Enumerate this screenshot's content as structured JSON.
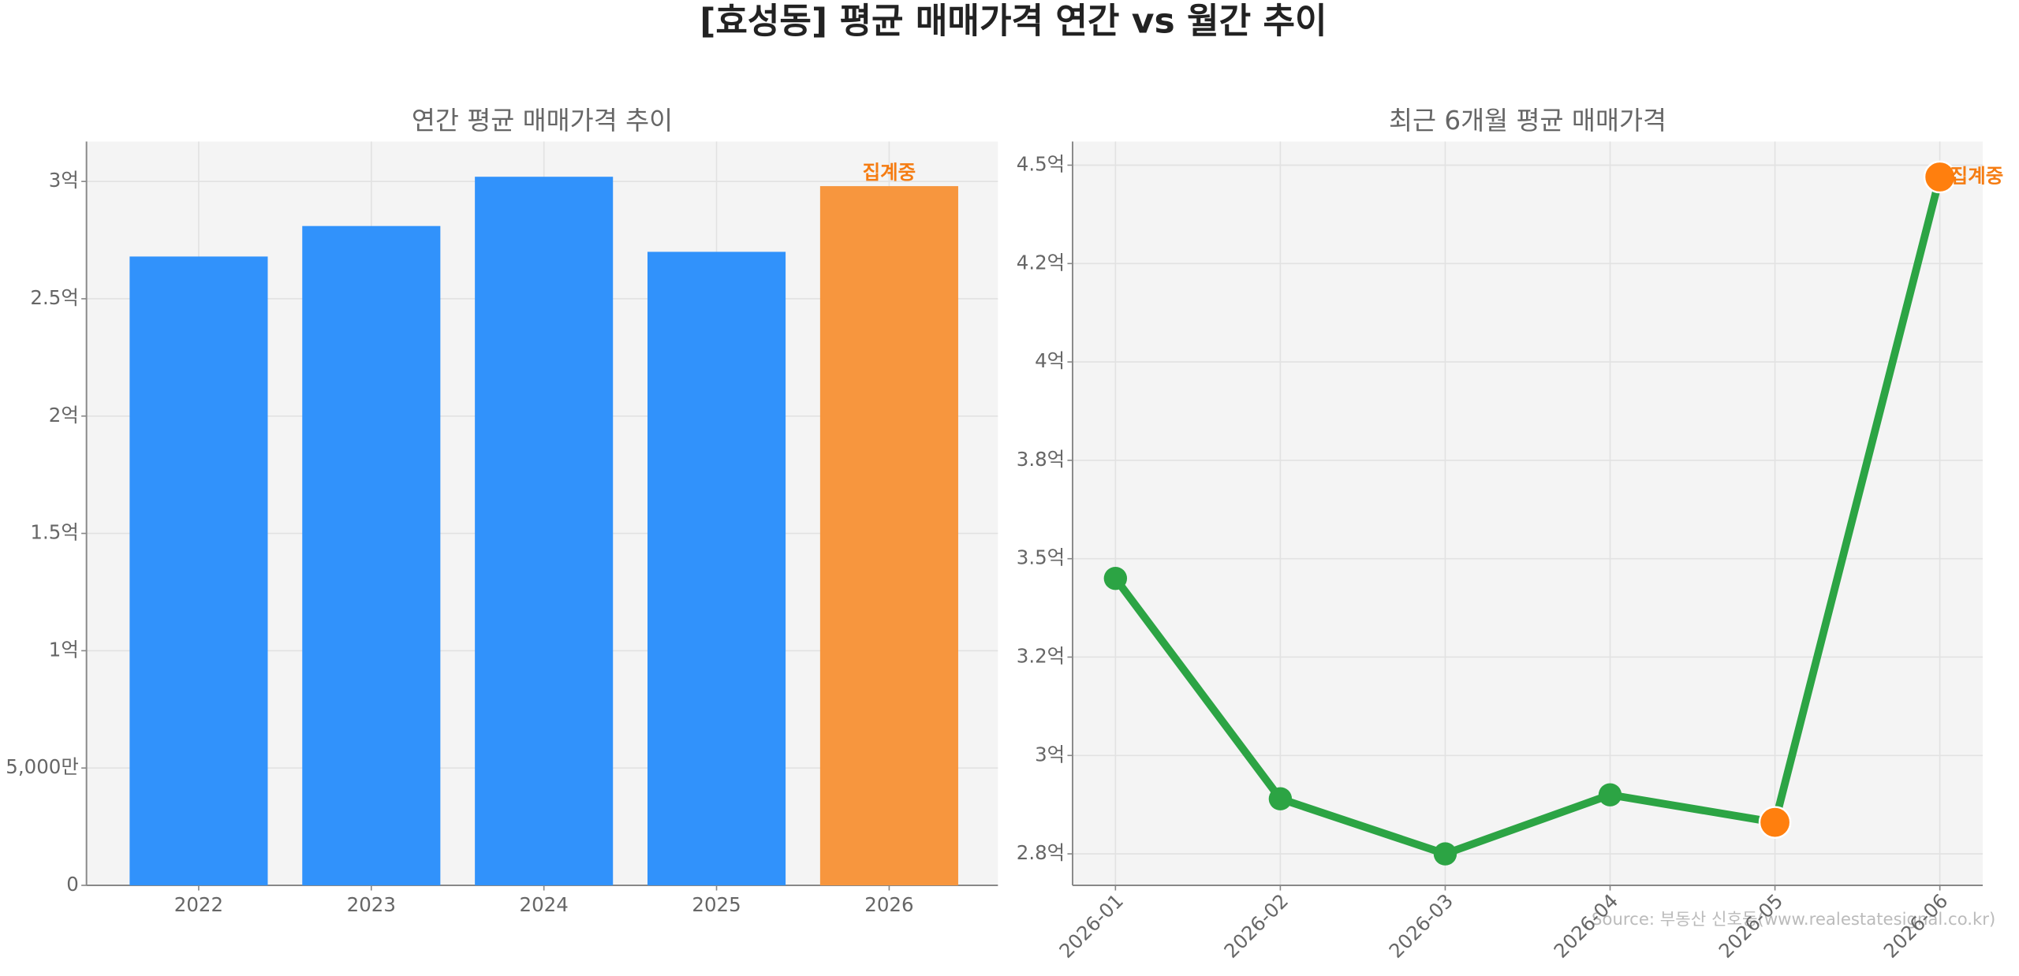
{
  "title": "[효성동] 평균 매매가격 연간 vs 월간 추이",
  "source": "Source: 부동산 신호등(www.realestatesignal.co.kr)",
  "chart_data": [
    {
      "type": "bar",
      "title": "연간 평균 매매가격 추이",
      "categories": [
        "2022",
        "2023",
        "2024",
        "2025",
        "2026"
      ],
      "values": [
        268000000,
        281000000,
        302000000,
        270000000,
        298000000
      ],
      "colors": [
        "#3192fb",
        "#3192fb",
        "#3192fb",
        "#3192fb",
        "#f7963e"
      ],
      "annotation": "집계중",
      "annotation_color": "#f57c12",
      "ylim": [
        0,
        317000000
      ],
      "yticks": [
        {
          "value": 0,
          "label": "0"
        },
        {
          "value": 50000000,
          "label": "5,000만"
        },
        {
          "value": 100000000,
          "label": "1억"
        },
        {
          "value": 150000000,
          "label": "1.5억"
        },
        {
          "value": 200000000,
          "label": "2억"
        },
        {
          "value": 250000000,
          "label": "2.5억"
        },
        {
          "value": 300000000,
          "label": "3억"
        }
      ],
      "grid": true
    },
    {
      "type": "line",
      "title": "최근 6개월 평균 매매가격",
      "categories": [
        "2026-01",
        "2026-02",
        "2026-03",
        "2026-04",
        "2026-05",
        "2026-06"
      ],
      "values": [
        345000000,
        289000000,
        275000000,
        290000000,
        283000000,
        447000000
      ],
      "color": "#2ca444",
      "marker_colors": [
        "#2ca444",
        "#2ca444",
        "#2ca444",
        "#2ca444",
        "#ff7f0e",
        "#ff7f0e"
      ],
      "annotation": "집계중",
      "annotation_color": "#f57c12",
      "ylim": [
        267000000,
        456000000
      ],
      "yticks": [
        {
          "value": 275000000,
          "label": "2.8억"
        },
        {
          "value": 300000000,
          "label": "3억"
        },
        {
          "value": 325000000,
          "label": "3.2억"
        },
        {
          "value": 350000000,
          "label": "3.5억"
        },
        {
          "value": 375000000,
          "label": "3.8억"
        },
        {
          "value": 400000000,
          "label": "4억"
        },
        {
          "value": 425000000,
          "label": "4.2억"
        },
        {
          "value": 450000000,
          "label": "4.5억"
        }
      ],
      "grid": true
    }
  ]
}
